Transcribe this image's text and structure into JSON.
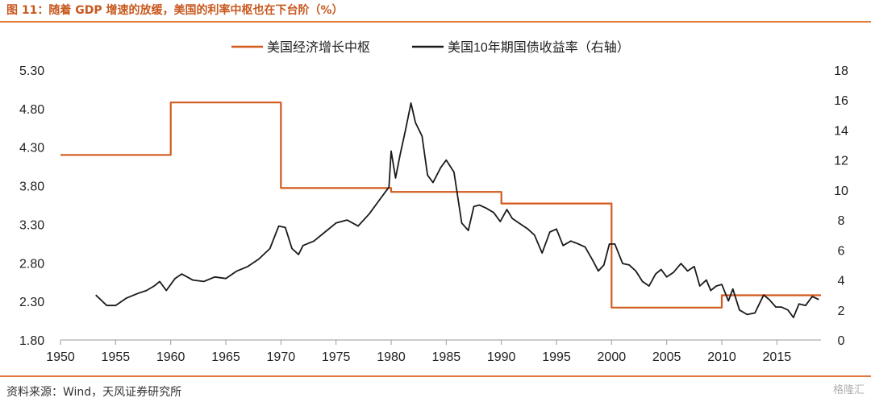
{
  "title": "图 11：随着 GDP 增速的放缓，美国的利率中枢也在下台阶（%）",
  "source": "资料来源：Wind，天风证券研究所",
  "watermark": "格隆汇",
  "colors": {
    "series1": "#d35a1e",
    "series2": "#1a1a1a",
    "rule": "#e07a3a",
    "title": "#c8581e"
  },
  "chart_data": {
    "type": "line",
    "legend_placement": "top",
    "grid": false,
    "x_range": [
      1950,
      2019
    ],
    "x_ticks": [
      "1950",
      "1955",
      "1960",
      "1965",
      "1970",
      "1975",
      "1980",
      "1985",
      "1990",
      "1995",
      "2000",
      "2005",
      "2010",
      "2015"
    ],
    "y_left": {
      "range": [
        1.8,
        5.3
      ],
      "ticks": [
        "1.80",
        "2.30",
        "2.80",
        "3.30",
        "3.80",
        "4.30",
        "4.80",
        "5.30"
      ]
    },
    "y_right": {
      "range": [
        0,
        18
      ],
      "ticks": [
        "0",
        "2",
        "4",
        "6",
        "8",
        "10",
        "12",
        "14",
        "16",
        "18"
      ]
    },
    "series": [
      {
        "name": "美国经济增长中枢",
        "axis": "left",
        "color": "#d35a1e",
        "points": [
          [
            1950,
            4.2
          ],
          [
            1960,
            4.2
          ],
          [
            1960,
            4.88
          ],
          [
            1970,
            4.88
          ],
          [
            1970,
            3.77
          ],
          [
            1980,
            3.77
          ],
          [
            1980,
            3.72
          ],
          [
            1990,
            3.72
          ],
          [
            1990,
            3.57
          ],
          [
            2000,
            3.57
          ],
          [
            2000,
            2.22
          ],
          [
            2010,
            2.22
          ],
          [
            2010,
            2.38
          ],
          [
            2019,
            2.38
          ]
        ]
      },
      {
        "name": "美国10年期国债收益率（右轴）",
        "axis": "right",
        "color": "#1a1a1a",
        "points": [
          [
            1953.2,
            3.0
          ],
          [
            1954.2,
            2.3
          ],
          [
            1955,
            2.3
          ],
          [
            1956,
            2.8
          ],
          [
            1957,
            3.1
          ],
          [
            1957.8,
            3.3
          ],
          [
            1958.5,
            3.6
          ],
          [
            1959,
            3.9
          ],
          [
            1959.6,
            3.3
          ],
          [
            1960.4,
            4.1
          ],
          [
            1961,
            4.4
          ],
          [
            1962,
            4.0
          ],
          [
            1963,
            3.9
          ],
          [
            1964,
            4.2
          ],
          [
            1965,
            4.1
          ],
          [
            1966,
            4.6
          ],
          [
            1967,
            4.9
          ],
          [
            1968,
            5.4
          ],
          [
            1969,
            6.1
          ],
          [
            1969.8,
            7.6
          ],
          [
            1970.4,
            7.5
          ],
          [
            1971,
            6.1
          ],
          [
            1971.6,
            5.7
          ],
          [
            1972,
            6.3
          ],
          [
            1973,
            6.6
          ],
          [
            1974,
            7.2
          ],
          [
            1975,
            7.8
          ],
          [
            1976,
            8.0
          ],
          [
            1977,
            7.6
          ],
          [
            1978,
            8.4
          ],
          [
            1979,
            9.4
          ],
          [
            1979.8,
            10.2
          ],
          [
            1980,
            12.6
          ],
          [
            1980.4,
            10.8
          ],
          [
            1980.8,
            12.3
          ],
          [
            1981.3,
            14.0
          ],
          [
            1981.8,
            15.8
          ],
          [
            1982.2,
            14.5
          ],
          [
            1982.8,
            13.6
          ],
          [
            1983.3,
            11.0
          ],
          [
            1983.8,
            10.5
          ],
          [
            1984.5,
            11.5
          ],
          [
            1985,
            12.0
          ],
          [
            1985.7,
            11.2
          ],
          [
            1986.4,
            7.8
          ],
          [
            1987,
            7.3
          ],
          [
            1987.5,
            8.9
          ],
          [
            1988,
            9.0
          ],
          [
            1988.6,
            8.8
          ],
          [
            1989.3,
            8.5
          ],
          [
            1989.9,
            7.9
          ],
          [
            1990.5,
            8.7
          ],
          [
            1991,
            8.1
          ],
          [
            1991.8,
            7.7
          ],
          [
            1992.4,
            7.4
          ],
          [
            1993,
            7.0
          ],
          [
            1993.7,
            5.8
          ],
          [
            1994.4,
            7.2
          ],
          [
            1995,
            7.4
          ],
          [
            1995.6,
            6.3
          ],
          [
            1996.3,
            6.6
          ],
          [
            1997,
            6.4
          ],
          [
            1997.6,
            6.2
          ],
          [
            1998.3,
            5.3
          ],
          [
            1998.8,
            4.6
          ],
          [
            1999.3,
            5.0
          ],
          [
            1999.8,
            6.4
          ],
          [
            2000.3,
            6.4
          ],
          [
            2001,
            5.1
          ],
          [
            2001.6,
            5.0
          ],
          [
            2002.2,
            4.6
          ],
          [
            2002.8,
            3.9
          ],
          [
            2003.4,
            3.6
          ],
          [
            2004,
            4.4
          ],
          [
            2004.5,
            4.7
          ],
          [
            2005,
            4.2
          ],
          [
            2005.6,
            4.5
          ],
          [
            2006.3,
            5.1
          ],
          [
            2006.9,
            4.6
          ],
          [
            2007.5,
            4.9
          ],
          [
            2008,
            3.6
          ],
          [
            2008.6,
            4.0
          ],
          [
            2009,
            3.3
          ],
          [
            2009.5,
            3.6
          ],
          [
            2010,
            3.7
          ],
          [
            2010.6,
            2.6
          ],
          [
            2011,
            3.4
          ],
          [
            2011.6,
            2.0
          ],
          [
            2012.3,
            1.7
          ],
          [
            2013,
            1.8
          ],
          [
            2013.8,
            3.0
          ],
          [
            2014.3,
            2.7
          ],
          [
            2014.9,
            2.2
          ],
          [
            2015.4,
            2.2
          ],
          [
            2016,
            2.0
          ],
          [
            2016.5,
            1.5
          ],
          [
            2017,
            2.4
          ],
          [
            2017.6,
            2.3
          ],
          [
            2018.2,
            2.9
          ],
          [
            2018.8,
            2.7
          ]
        ]
      }
    ]
  }
}
